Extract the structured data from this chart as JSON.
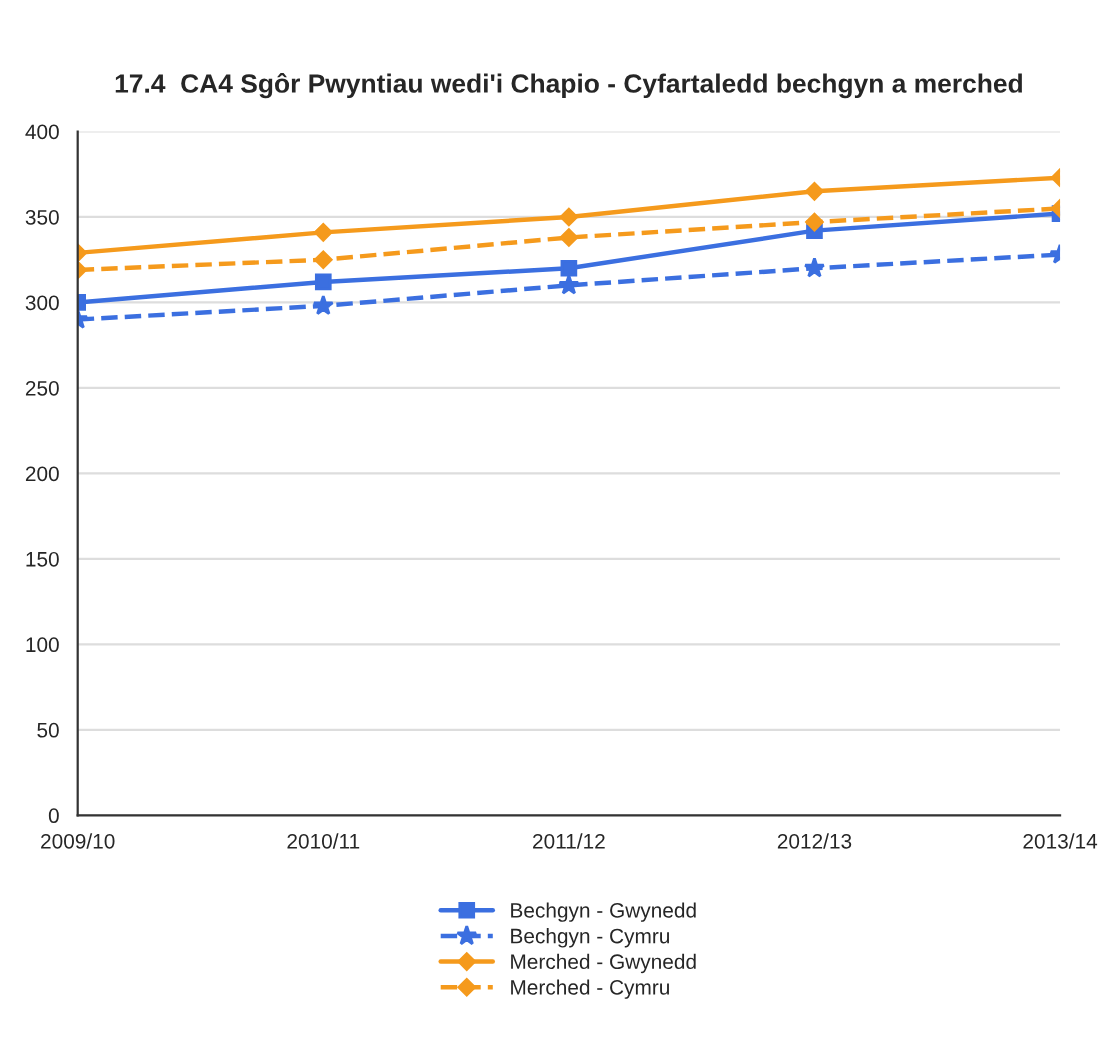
{
  "chart_data": {
    "type": "line",
    "title": "17.4  CA4 Sgôr Pwyntiau wedi'i Chapio - Cyfartaledd bechgyn a merched",
    "categories": [
      "2009/10",
      "2010/11",
      "2011/12",
      "2012/13",
      "2013/14"
    ],
    "ylim": [
      0,
      400
    ],
    "yticks": [
      0,
      50,
      100,
      150,
      200,
      250,
      300,
      350,
      400
    ],
    "grid": "y",
    "legend": "bottom",
    "series": [
      {
        "name": "Bechgyn - Gwynedd",
        "color": "#3b6fe0",
        "marker": "square",
        "line_style": "solid",
        "values": [
          300,
          312,
          320,
          342,
          352
        ]
      },
      {
        "name": "Bechgyn - Cymru",
        "color": "#3b6fe0",
        "marker": "star",
        "line_style": "dashed",
        "values": [
          290,
          298,
          310,
          320,
          328
        ]
      },
      {
        "name": "Merched - Gwynedd",
        "color": "#f59a1c",
        "marker": "diamond",
        "line_style": "solid",
        "values": [
          329,
          341,
          350,
          365,
          373
        ]
      },
      {
        "name": "Merched - Cymru",
        "color": "#f59a1c",
        "marker": "diamond",
        "line_style": "dashed",
        "values": [
          319,
          325,
          338,
          347,
          355
        ]
      }
    ]
  }
}
